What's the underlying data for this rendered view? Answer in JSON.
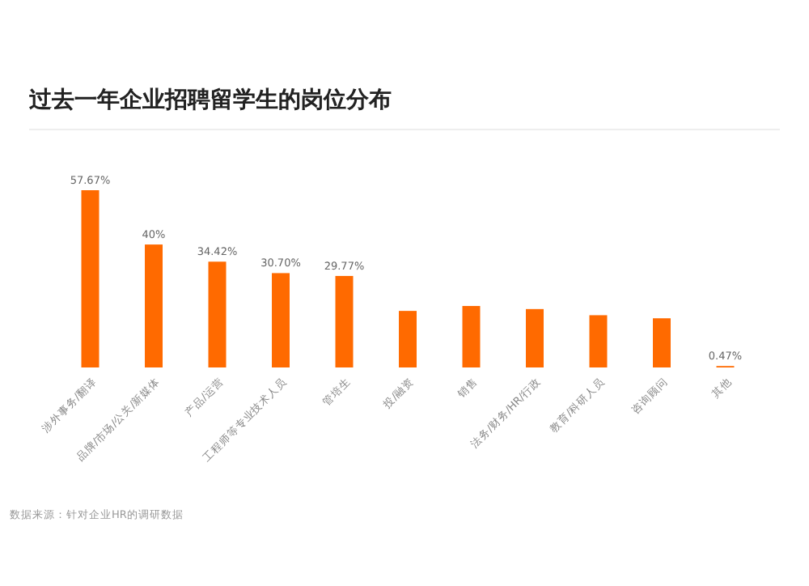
{
  "chart_data": {
    "type": "bar",
    "title": "过去一年企业招聘留学生的岗位分布",
    "categories": [
      "涉外事务/翻译",
      "品牌/市场/公关/新媒体",
      "产品/运营",
      "工程师等专业技术人员",
      "管培生",
      "投/融资",
      "销售",
      "法务/财务/HR/行政",
      "教育/科研人员",
      "咨询顾问",
      "其他"
    ],
    "values": [
      57.67,
      40,
      34.42,
      30.7,
      29.77,
      18.4,
      20,
      19,
      17,
      16,
      0.47
    ],
    "value_labels": [
      "57.67%",
      "40%",
      "34.42%",
      "30.70%",
      "29.77%",
      null,
      null,
      null,
      null,
      null,
      "0.47%"
    ],
    "color": "#ff6a00",
    "annotations": [
      "数据来源：针对企业HR的调研数据"
    ]
  }
}
